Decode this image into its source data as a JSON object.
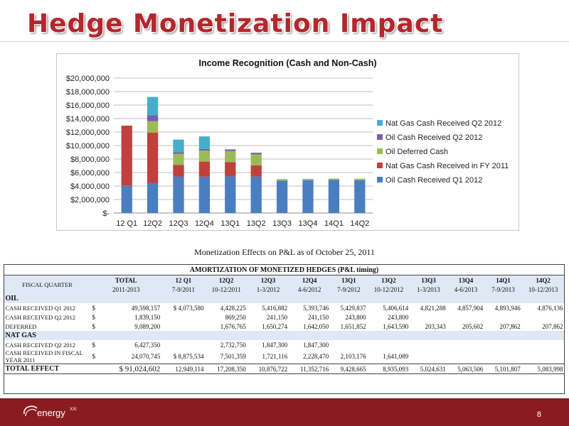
{
  "slide": {
    "title": "Hedge Monetization Impact",
    "page_number": "8",
    "logo_text": "energy",
    "logo_suffix": "XXI"
  },
  "chart_data": {
    "type": "bar",
    "stacked": true,
    "title": "Income Recognition (Cash and Non-Cash)",
    "categories": [
      "12 Q1",
      "12Q2",
      "12Q3",
      "12Q4",
      "13Q1",
      "13Q2",
      "13Q3",
      "13Q4",
      "14Q1",
      "14Q2"
    ],
    "ylim": [
      0,
      20000000
    ],
    "yticks": [
      0,
      2000000,
      4000000,
      6000000,
      8000000,
      10000000,
      12000000,
      14000000,
      16000000,
      18000000,
      20000000
    ],
    "ytick_labels": [
      "$-",
      "$2,000,000",
      "$4,000,000",
      "$6,000,000",
      "$8,000,000",
      "$10,000,000",
      "$12,000,000",
      "$14,000,000",
      "$16,000,000",
      "$18,000,000",
      "$20,000,000"
    ],
    "grid": true,
    "legend_position": "right",
    "series": [
      {
        "name": "Oil Cash Received Q1 2012",
        "color": "#4a7ec0",
        "values": [
          4073580,
          4428225,
          5416882,
          5393746,
          5429837,
          5406614,
          4821288,
          4857904,
          4893946,
          4876136
        ]
      },
      {
        "name": "Nat Gas Cash Received in FY 2011",
        "color": "#c0403c",
        "values": [
          8875534,
          7501359,
          1721116,
          2228470,
          2103176,
          1641089,
          0,
          0,
          0,
          0
        ]
      },
      {
        "name": "Oil Deferred Cash",
        "color": "#9bbb59",
        "values": [
          0,
          1676765,
          1650274,
          1642050,
          1651852,
          1643590,
          203343,
          205602,
          207862,
          207862
        ]
      },
      {
        "name": "Oil Cash Received Q2 2012",
        "color": "#7a5ea8",
        "values": [
          0,
          869250,
          241150,
          241150,
          243800,
          243800,
          0,
          0,
          0,
          0
        ]
      },
      {
        "name": "Nat Gas Cash Received Q2 2012",
        "color": "#45aecb",
        "values": [
          0,
          2732750,
          1847300,
          1847300,
          0,
          0,
          0,
          0,
          0,
          0
        ]
      }
    ]
  },
  "table": {
    "subtitle": "Monetization Effects on P&L as of October 25, 2011",
    "heading": "AMORTIZATION OF MONETIZED HEDGES (P&L timing)",
    "fiscal_quarter_label": "FISCAL QUARTER",
    "total_label": "TOTAL",
    "total_range": "2011-2013",
    "quarters": [
      "12 Q1",
      "12Q2",
      "12Q3",
      "12Q4",
      "13Q1",
      "13Q2",
      "13Q3",
      "13Q4",
      "14Q1",
      "14Q2"
    ],
    "quarter_ranges": [
      "7-9/2011",
      "10-12/2011",
      "1-3/2012",
      "4-6/2012",
      "7-9/2012",
      "10-12/2012",
      "1-3/2013",
      "4-6/2013",
      "7-9/2013",
      "10-12/2013"
    ],
    "oil_section": "OIL",
    "gas_section": "NAT GAS",
    "oil_rows": [
      {
        "label": "CASH RECEIVED Q1 2012",
        "dollar": "$",
        "total": "49,598,157",
        "cells": [
          "$ 4,073,580",
          "4,428,225",
          "5,416,882",
          "5,393,746",
          "5,429,837",
          "5,406,614",
          "4,821,288",
          "4,857,904",
          "4,893,946",
          "4,876,136"
        ]
      },
      {
        "label": "CASH RECEIVED Q2 2012",
        "dollar": "$",
        "total": "1,839,150",
        "cells": [
          "",
          "869,250",
          "241,150",
          "241,150",
          "243,800",
          "243,800",
          "",
          "",
          "",
          ""
        ]
      },
      {
        "label": "DEFERRED",
        "dollar": "$",
        "total": "9,089,200",
        "cells": [
          "",
          "1,676,765",
          "1,650,274",
          "1,642,050",
          "1,651,852",
          "1,643,590",
          "203,343",
          "205,602",
          "207,862",
          "207,862"
        ]
      }
    ],
    "gas_rows": [
      {
        "label": "CASH RECEIVED Q2 2012",
        "dollar": "$",
        "total": "6,427,350",
        "cells": [
          "",
          "2,732,750",
          "1,847,300",
          "1,847,300",
          "",
          "",
          "",
          "",
          "",
          ""
        ]
      },
      {
        "label_line1": "CASH RECEIVED IN FISCAL",
        "label_line2": "YEAR 2011",
        "dollar": "$",
        "total": "24,070,745",
        "cells": [
          "$ 8,875,534",
          "7,501,359",
          "1,721,116",
          "2,228,470",
          "2,103,176",
          "1,641,089",
          "",
          "",
          "",
          ""
        ]
      }
    ],
    "total_row": {
      "label": "TOTAL EFFECT",
      "total": "$ 91,024,602",
      "cells": [
        "12,949,114",
        "17,208,350",
        "10,876,722",
        "11,352,716",
        "9,428,665",
        "8,935,093",
        "5,024,631",
        "5,063,506",
        "5,101,807",
        "5,083,998"
      ]
    }
  }
}
